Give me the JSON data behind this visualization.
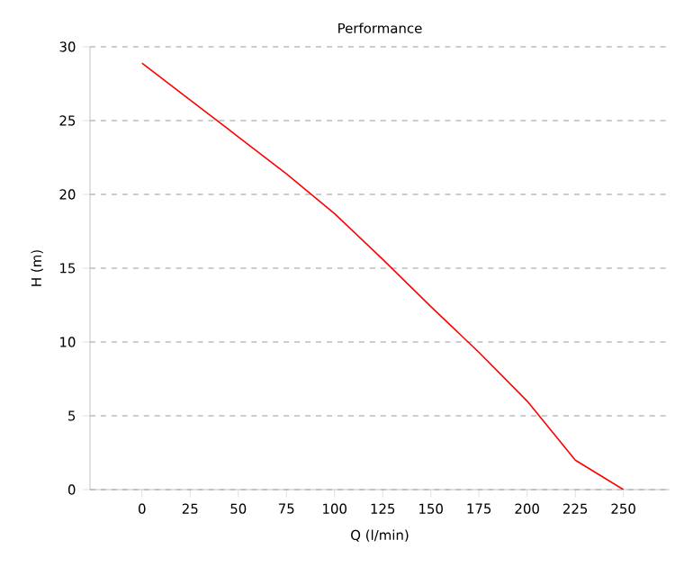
{
  "chart_data": {
    "type": "line",
    "title": "Performance",
    "xlabel": "Q (l/min)",
    "ylabel": "H (m)",
    "x": [
      0,
      25,
      50,
      75,
      100,
      125,
      150,
      175,
      200,
      225,
      250
    ],
    "series": [
      {
        "color": "#ff0000",
        "values": [
          28.9,
          26.4,
          23.9,
          21.4,
          18.7,
          15.6,
          12.4,
          9.3,
          6.0,
          2.0,
          0.0
        ]
      }
    ],
    "xlim": [
      -27,
      274
    ],
    "ylim": [
      0,
      30
    ],
    "xticks": [
      0,
      25,
      50,
      75,
      100,
      125,
      150,
      175,
      200,
      225,
      250
    ],
    "yticks": [
      0,
      5,
      10,
      15,
      20,
      25,
      30
    ],
    "grid": "y",
    "marker": "none",
    "line_style": "solid"
  }
}
